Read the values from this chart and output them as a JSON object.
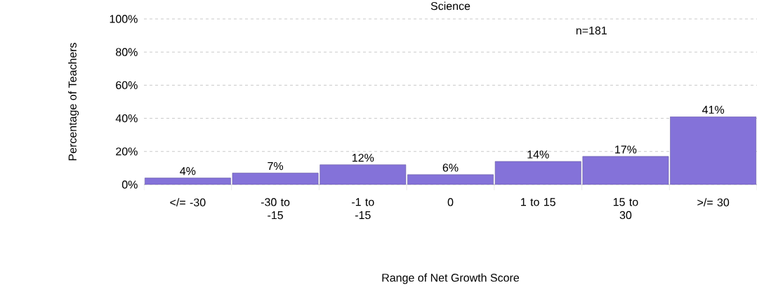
{
  "chart_data": {
    "type": "bar",
    "title": "Science",
    "xlabel": "Range of Net Growth Score",
    "ylabel": "Percentage of Teachers",
    "categories": [
      "</= -30",
      "-30 to -15",
      "-1 to -15",
      "0",
      "1 to 15",
      "15 to 30",
      ">/= 30"
    ],
    "values": [
      4,
      7,
      12,
      6,
      14,
      17,
      41
    ],
    "value_labels": [
      "4%",
      "7%",
      "12%",
      "6%",
      "14%",
      "17%",
      "41%"
    ],
    "color": "#8472d9",
    "ylim": [
      0,
      100
    ],
    "yticks": [
      {
        "value": 0,
        "label": "0%"
      },
      {
        "value": 20,
        "label": "20%"
      },
      {
        "value": 40,
        "label": "40%"
      },
      {
        "value": 60,
        "label": "60%"
      },
      {
        "value": 80,
        "label": "80%"
      },
      {
        "value": 100,
        "label": "100%"
      }
    ],
    "grid": "y",
    "annotations": [
      "n=181"
    ]
  }
}
